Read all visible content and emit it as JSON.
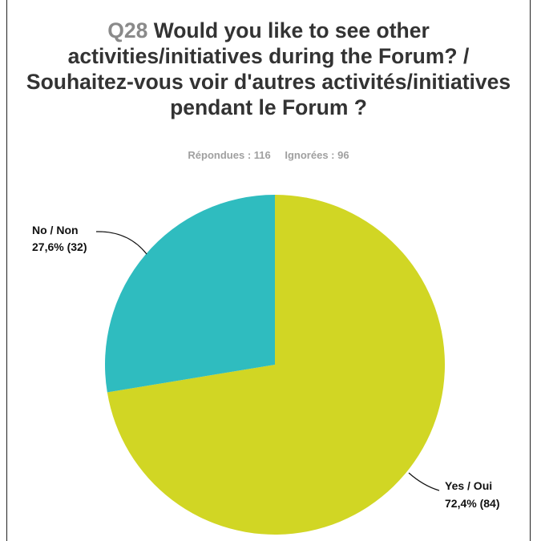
{
  "header": {
    "question_number": "Q28",
    "question_text": "Would you like to see other activities/initiatives during the Forum? / Souhaitez-vous voir d'autres activités/initiatives pendant le Forum ?"
  },
  "stats": {
    "answered": "Répondues : 116",
    "skipped": "Ignorées : 96"
  },
  "chart_data": {
    "type": "pie",
    "title": "Q28 Would you like to see other activities/initiatives during the Forum? / Souhaitez-vous voir d'autres activités/initiatives pendant le Forum ?",
    "start_angle_deg": 0,
    "direction": "clockwise",
    "slices": [
      {
        "label": "Yes / Oui",
        "value_label": "72,4% (84)",
        "percent": 72.4,
        "count": 84,
        "color": "#d1d624"
      },
      {
        "label": "No / Non",
        "value_label": "27,6% (32)",
        "percent": 27.6,
        "count": 32,
        "color": "#2fbcbf"
      }
    ],
    "total_answered": 116,
    "total_skipped": 96
  }
}
